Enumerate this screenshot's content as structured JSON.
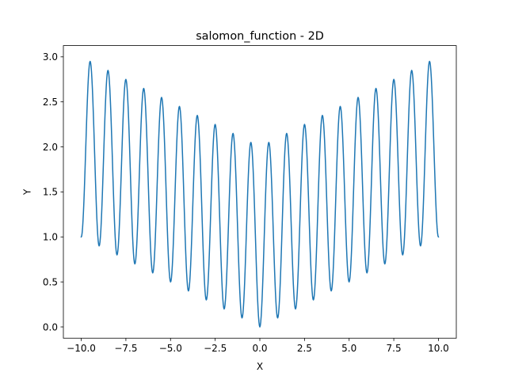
{
  "chart_data": {
    "type": "line",
    "title": "salomon_function - 2D",
    "xlabel": "X",
    "ylabel": "Y",
    "xlim": [
      -11.0,
      11.0
    ],
    "ylim": [
      -0.125,
      3.125
    ],
    "xticks": [
      -10.0,
      -7.5,
      -5.0,
      -2.5,
      0.0,
      2.5,
      5.0,
      7.5,
      10.0
    ],
    "xtick_labels": [
      "−10.0",
      "−7.5",
      "−5.0",
      "−2.5",
      "0.0",
      "2.5",
      "5.0",
      "7.5",
      "10.0"
    ],
    "yticks": [
      0.0,
      0.5,
      1.0,
      1.5,
      2.0,
      2.5,
      3.0
    ],
    "ytick_labels": [
      "0.0",
      "0.5",
      "1.0",
      "1.5",
      "2.0",
      "2.5",
      "3.0"
    ],
    "grid": false,
    "legend": "none",
    "line_color": "#1f77b4",
    "series": [
      {
        "function": "1 - cos(2*pi*|x|) + 0.1*|x|",
        "x_start": -10.0,
        "x_end": 10.0,
        "sample_step": 0.025
      }
    ]
  }
}
